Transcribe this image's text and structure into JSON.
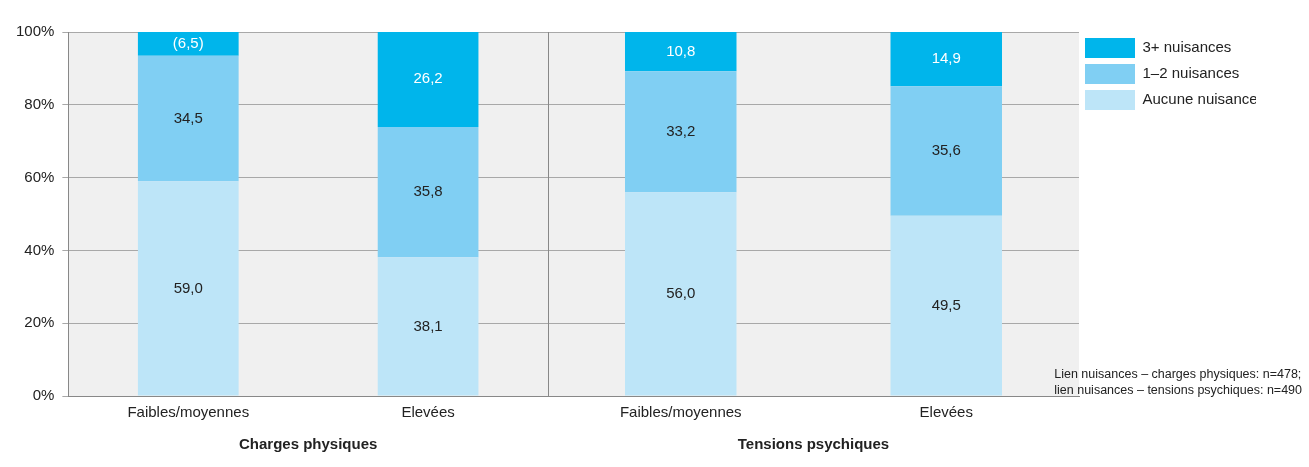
{
  "chart_data": [
    {
      "type": "bar",
      "stacked": true,
      "xlabel": "Charges physiques",
      "categories": [
        "Faibles/moyennes",
        "Elevées"
      ],
      "ylim": [
        0,
        100
      ],
      "yticks": [
        {
          "value": 0,
          "label": "0%"
        },
        {
          "value": 20,
          "label": "20%"
        },
        {
          "value": 40,
          "label": "40%"
        },
        {
          "value": 60,
          "label": "60%"
        },
        {
          "value": 80,
          "label": "80%"
        },
        {
          "value": 100,
          "label": "100%"
        }
      ],
      "grid": "y",
      "legend": false,
      "series": [
        {
          "color": "#bde5f8",
          "values": [
            59.0,
            38.1
          ],
          "value_labels": [
            "59,0",
            "38,1"
          ]
        },
        {
          "color": "#80cff3",
          "values": [
            34.5,
            35.8
          ],
          "value_labels": [
            "34,5",
            "35,8"
          ]
        },
        {
          "color": "#00b5eb",
          "values": [
            6.5,
            26.2
          ],
          "value_labels": [
            "(6,5)",
            "26,2"
          ]
        }
      ]
    },
    {
      "type": "bar",
      "stacked": true,
      "xlabel": "Tensions psychiques",
      "categories": [
        "Faibles/moyennes",
        "Elevées"
      ],
      "ylim": [
        0,
        100
      ],
      "grid": "y",
      "legend": "top right",
      "tick_labels": "x",
      "yticks": [
        {
          "value": 0,
          "label": null
        },
        {
          "value": 20,
          "label": null
        },
        {
          "value": 40,
          "label": null
        },
        {
          "value": 60,
          "label": null
        },
        {
          "value": 80,
          "label": null
        },
        {
          "value": 100,
          "label": null
        }
      ],
      "annotations": [
        "Lien nuisances – charges physiques: n=478;\nlien nuisances – tensions psychiques: n=490"
      ],
      "series": [
        {
          "name": "Aucune nuisance",
          "color": "#bde5f8",
          "values": [
            56.0,
            49.5
          ],
          "value_labels": [
            "56,0",
            "49,5"
          ]
        },
        {
          "name": "1–2 nuisances",
          "color": "#80cff3",
          "values": [
            33.2,
            35.6
          ],
          "value_labels": [
            "33,2",
            "35,6"
          ]
        },
        {
          "name": "3+ nuisances",
          "color": "#00b5eb",
          "values": [
            10.8,
            14.9
          ],
          "value_labels": [
            "10,8",
            "14,9"
          ]
        }
      ]
    }
  ]
}
